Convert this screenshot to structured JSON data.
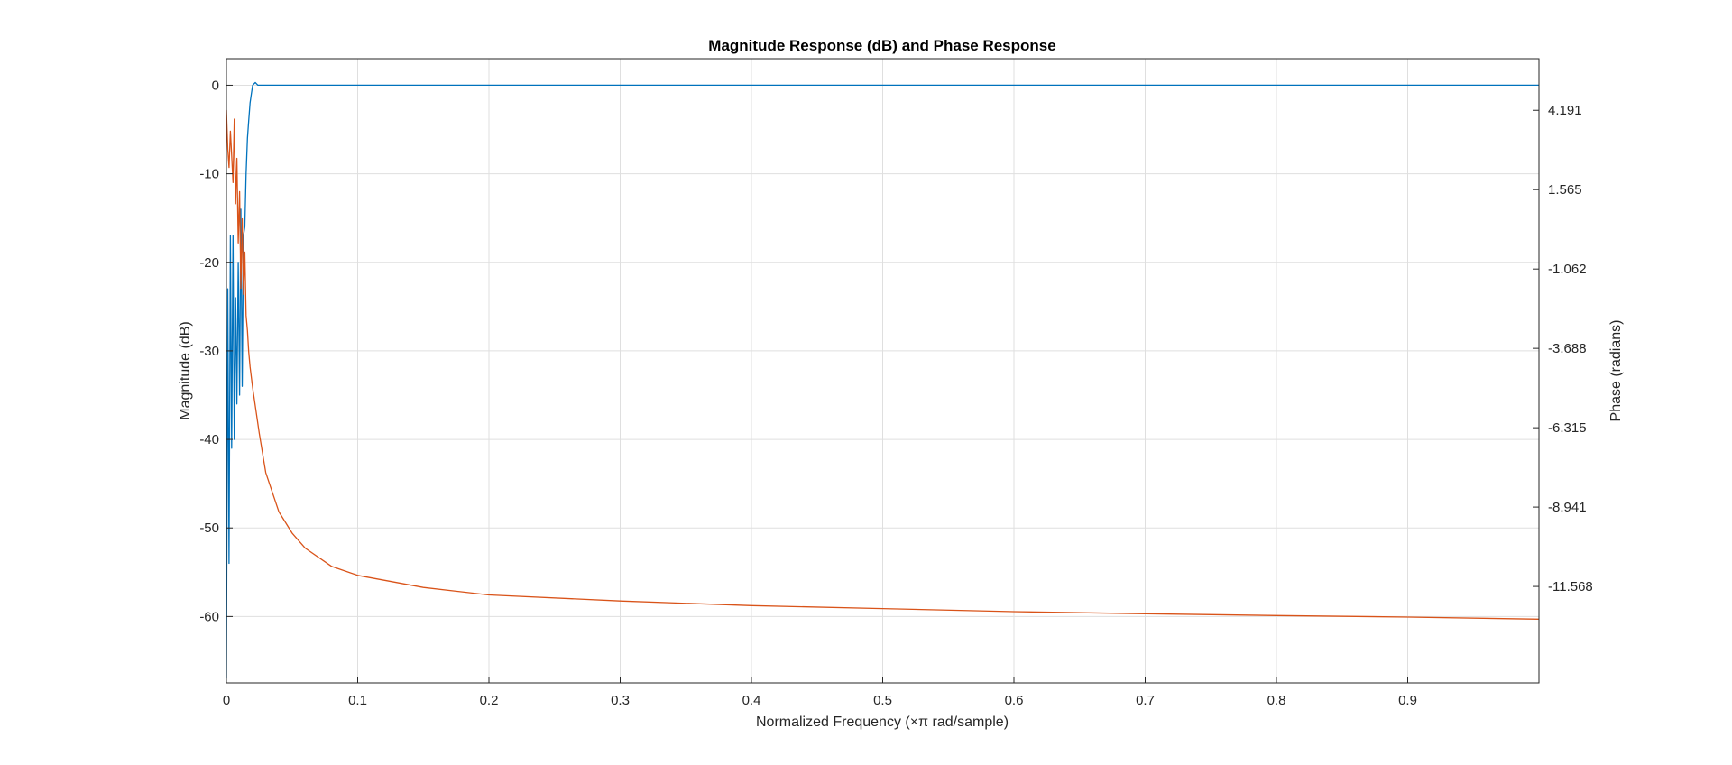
{
  "chart_data": {
    "type": "line",
    "title": "Magnitude Response (dB) and Phase Response",
    "xlabel": "Normalized Frequency (×π rad/sample)",
    "ylabel": "Magnitude (dB)",
    "y2label": "Phase (radians)",
    "xlim": [
      0,
      1
    ],
    "ylim": [
      -67.5,
      3
    ],
    "y2lim": [
      -14.76,
      5.9
    ],
    "grid": true,
    "x_ticks": [
      "0",
      "0.1",
      "0.2",
      "0.3",
      "0.4",
      "0.5",
      "0.6",
      "0.7",
      "0.8",
      "0.9"
    ],
    "x_tick_values": [
      0,
      0.1,
      0.2,
      0.3,
      0.4,
      0.5,
      0.6,
      0.7,
      0.8,
      0.9
    ],
    "y_ticks": [
      "0",
      "-10",
      "-20",
      "-30",
      "-40",
      "-50",
      "-60"
    ],
    "y_tick_values": [
      0,
      -10,
      -20,
      -30,
      -40,
      -50,
      -60
    ],
    "y2_ticks": [
      "4.191",
      "1.565",
      "-1.062",
      "-3.688",
      "-6.315",
      "-8.941",
      "-11.568"
    ],
    "y2_tick_values": [
      4.191,
      1.565,
      -1.062,
      -3.688,
      -6.315,
      -8.941,
      -11.568
    ],
    "series": [
      {
        "axis": "left",
        "color": "#0072BD",
        "x": [
          0,
          0.001,
          0.002,
          0.003,
          0.004,
          0.005,
          0.006,
          0.007,
          0.008,
          0.009,
          0.01,
          0.011,
          0.012,
          0.013,
          0.014,
          0.015,
          0.016,
          0.017,
          0.018,
          0.019,
          0.02,
          0.022,
          0.024,
          0.03,
          0.05,
          0.1,
          0.2,
          0.3,
          0.4,
          0.5,
          0.6,
          0.7,
          0.8,
          0.9,
          1.0
        ],
        "y": [
          -67,
          -23,
          -54,
          -17,
          -41,
          -17,
          -40,
          -24,
          -36,
          -20,
          -35,
          -14,
          -34,
          -17,
          -16,
          -10,
          -6,
          -4,
          -2,
          -1,
          0,
          0.3,
          0,
          0,
          0,
          0,
          0,
          0,
          0,
          0,
          0,
          0,
          0,
          0,
          0
        ]
      },
      {
        "axis": "right",
        "color": "#D95319",
        "x": [
          0,
          0.001,
          0.002,
          0.003,
          0.004,
          0.005,
          0.006,
          0.007,
          0.008,
          0.009,
          0.01,
          0.011,
          0.012,
          0.013,
          0.014,
          0.015,
          0.016,
          0.017,
          0.018,
          0.02,
          0.025,
          0.03,
          0.04,
          0.05,
          0.06,
          0.08,
          0.1,
          0.15,
          0.2,
          0.3,
          0.4,
          0.5,
          0.6,
          0.7,
          0.8,
          0.9,
          1.0
        ],
        "y": [
          4.2,
          2.9,
          2.3,
          3.5,
          2.7,
          1.8,
          3.9,
          1.1,
          2.6,
          -0.2,
          1.5,
          -1.7,
          0.6,
          -1.9,
          -0.5,
          -2.6,
          -3.1,
          -3.8,
          -4.3,
          -5.0,
          -6.5,
          -7.8,
          -9.1,
          -9.8,
          -10.3,
          -10.9,
          -11.2,
          -11.6,
          -11.85,
          -12.05,
          -12.2,
          -12.3,
          -12.4,
          -12.47,
          -12.53,
          -12.58,
          -12.65
        ]
      }
    ]
  }
}
